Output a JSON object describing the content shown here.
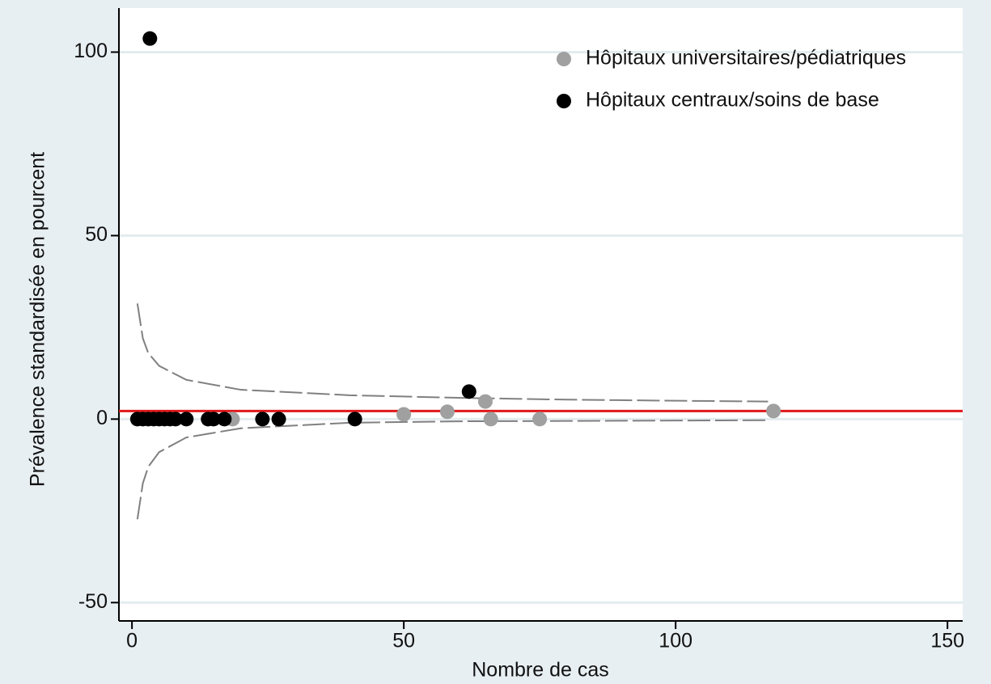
{
  "chart_data": {
    "type": "scatter",
    "x_label": "Nombre de cas",
    "y_label": "Prévalence standardisée en pourcent",
    "xlim": [
      -2.4,
      152.8
    ],
    "ylim": [
      -55,
      112
    ],
    "xticks": [
      0,
      50,
      100,
      150
    ],
    "yticks": [
      -50,
      0,
      50,
      100
    ],
    "grid": true,
    "legend": "top-right",
    "series": [
      {
        "name": "Hôpitaux universitaires/pédiatriques",
        "color": "#a0a0a0",
        "x": [
          18.5,
          50,
          58,
          65,
          66,
          75,
          118
        ],
        "values": [
          0,
          1.3,
          2,
          4.8,
          0,
          0,
          2.2
        ]
      },
      {
        "name": "Hôpitaux centraux/soins de base",
        "color": "#000000",
        "x": [
          1,
          2,
          3,
          4,
          5,
          6,
          7,
          8,
          10,
          14,
          15,
          17,
          24,
          27,
          41,
          3.3,
          62
        ],
        "values": [
          0,
          0,
          0,
          0,
          0,
          0,
          0,
          0,
          0,
          0,
          0,
          0,
          0,
          0,
          0,
          103.7,
          7.5
        ]
      }
    ],
    "lines": [
      {
        "color": "#808080",
        "x": [
          1,
          2,
          3,
          5,
          10,
          20,
          40,
          60,
          80,
          100,
          117
        ],
        "values": [
          31.5,
          22,
          18,
          14.5,
          10.7,
          8,
          6.5,
          5.8,
          5.3,
          5,
          4.8
        ]
      },
      {
        "color": "#808080",
        "x": [
          1,
          2,
          3,
          5,
          10,
          20,
          40,
          60,
          80,
          100,
          117
        ],
        "values": [
          -27.3,
          -17.5,
          -13,
          -9,
          -5,
          -2.5,
          -1,
          -0.6,
          -0.5,
          -0.4,
          -0.3
        ]
      }
    ],
    "reference_line": 2.2,
    "reference_color": "#e0191b"
  }
}
